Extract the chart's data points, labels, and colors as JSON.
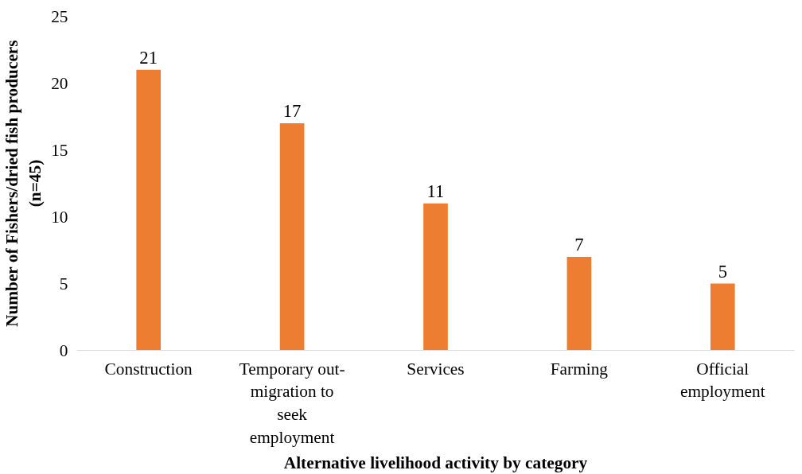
{
  "chart_data": {
    "type": "bar",
    "xlabel": "Alternative livelihood activity by category",
    "ylabel": "Number of Fishers/dried fish producers (n=45)",
    "categories": [
      "Construction",
      "Temporary out-migration to seek employment",
      "Services",
      "Farming",
      "Official employment"
    ],
    "values": [
      21,
      17,
      11,
      7,
      5
    ],
    "color": "#ed7d31",
    "ylim": [
      0,
      25
    ],
    "yticks": [
      0,
      5,
      10,
      15,
      20,
      25
    ],
    "grid": false,
    "data_labels": true
  }
}
